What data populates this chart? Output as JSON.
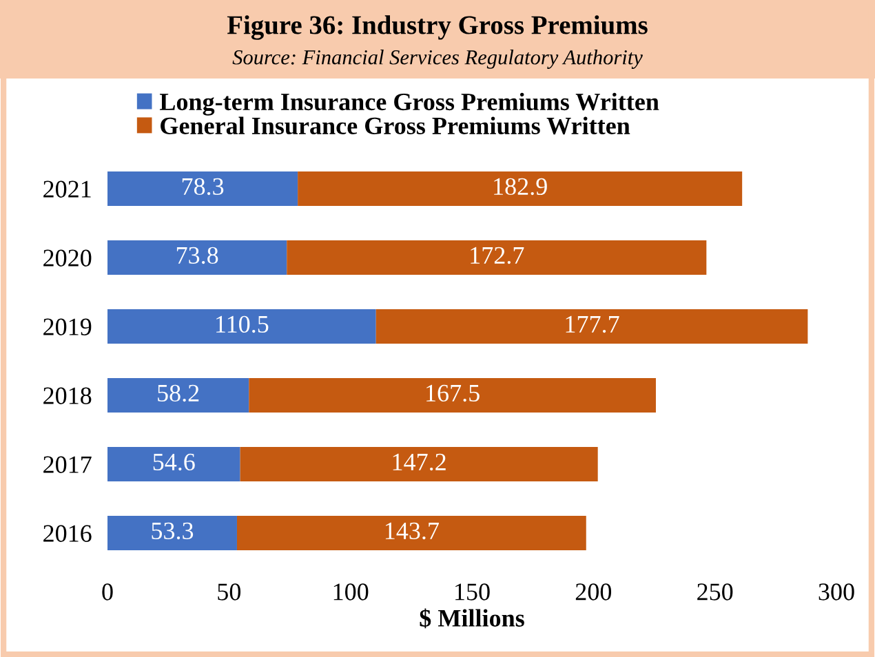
{
  "chart_data": {
    "type": "bar",
    "orientation": "horizontal",
    "stacked": true,
    "title": "Figure 36: Industry Gross Premiums",
    "subtitle": "Source: Financial Services Regulatory Authority",
    "xlabel": "$ Millions",
    "categories": [
      "2021",
      "2020",
      "2019",
      "2018",
      "2017",
      "2016"
    ],
    "series": [
      {
        "name": "Long-term Insurance Gross Premiums Written",
        "color": "#4472c4",
        "values": [
          78.3,
          73.8,
          110.5,
          58.2,
          54.6,
          53.3
        ]
      },
      {
        "name": "General Insurance Gross Premiums Written",
        "color": "#c55a11",
        "values": [
          182.9,
          172.7,
          177.7,
          167.5,
          147.2,
          143.7
        ]
      }
    ],
    "xlim": [
      0,
      300
    ],
    "xticks": [
      0,
      50,
      100,
      150,
      200,
      250,
      300
    ],
    "data_labels": true,
    "legend": "top",
    "grid": false
  }
}
